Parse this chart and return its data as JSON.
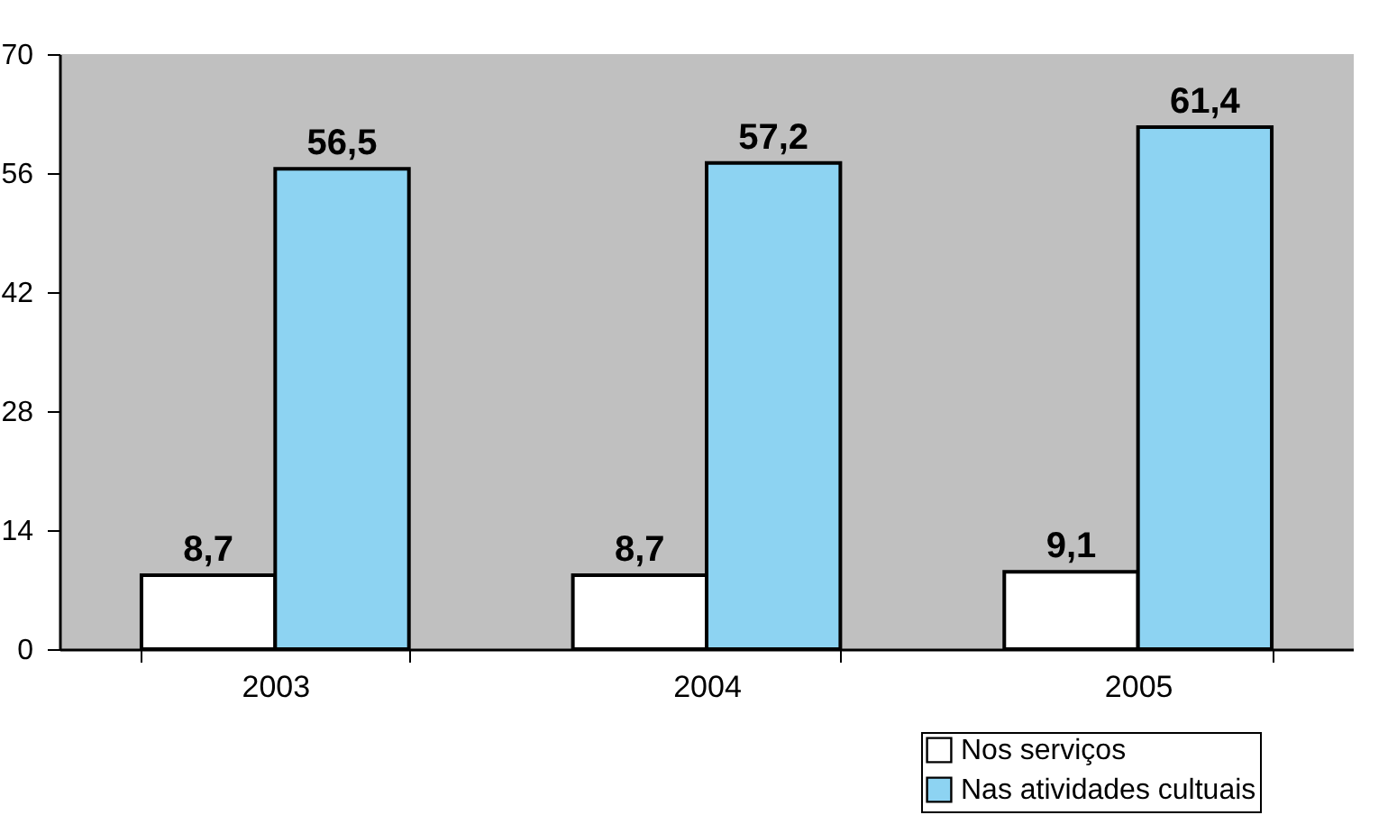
{
  "chart_data": {
    "type": "bar",
    "categories": [
      "2003",
      "2004",
      "2005"
    ],
    "series": [
      {
        "name": "Nos serviços",
        "color": "#ffffff",
        "values": [
          8.7,
          8.7,
          9.1
        ],
        "value_labels": [
          "8,7",
          "8,7",
          "9,1"
        ]
      },
      {
        "name": "Nas atividades cultuais",
        "color": "#8dd3f2",
        "values": [
          56.5,
          57.2,
          61.4
        ],
        "value_labels": [
          "56,5",
          "57,2",
          "61,4"
        ]
      }
    ],
    "ylim": [
      0,
      70
    ],
    "yticks": [
      0,
      14,
      28,
      42,
      56,
      70
    ],
    "grid": false,
    "legend": "bottom right"
  }
}
